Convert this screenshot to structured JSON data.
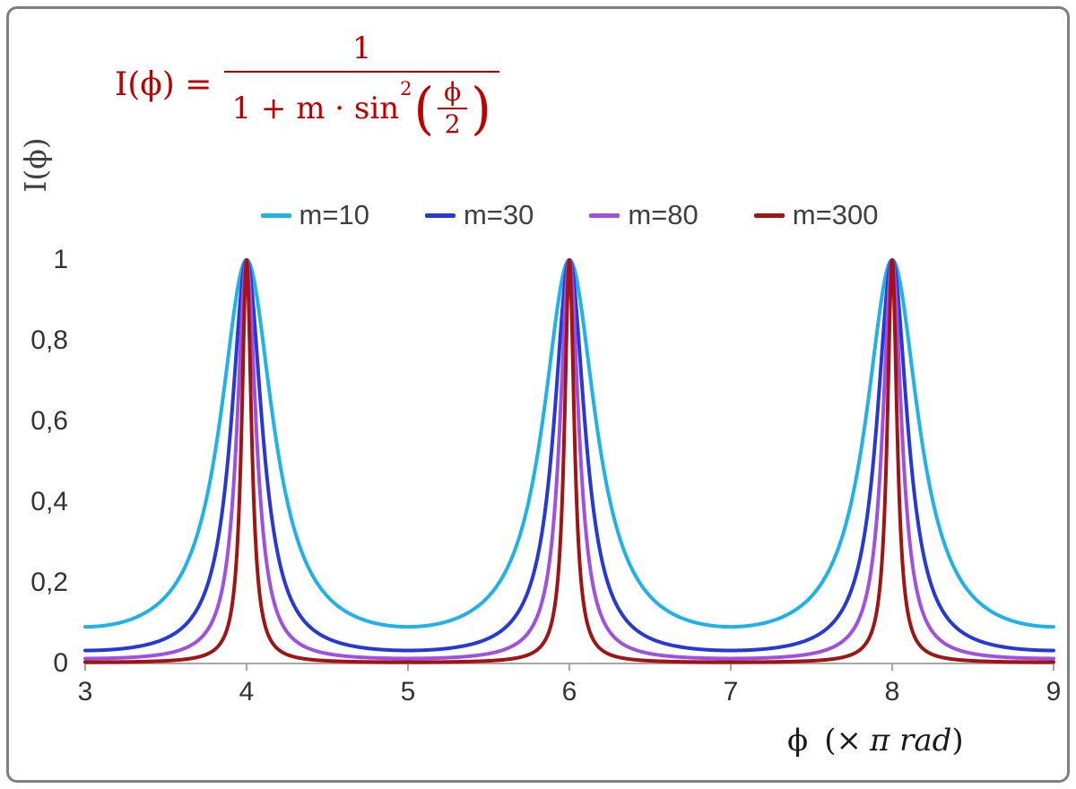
{
  "chart_data": {
    "type": "line",
    "title": "",
    "description": "Airy-type interference intensity function I(phi) = 1 / (1 + m*sin^2(phi/2)) plotted for several coefficients m; peaks of height 1 occur at phi = 4, 6, 8 (in units of pi rad).",
    "function": "I(phi) = 1 / (1 + m * sin^2(phi/2))",
    "ylabel": "I(ϕ)",
    "xlabel_parts": {
      "symbol": "ϕ",
      "pre": "(×",
      "italic": "π rad",
      "close": ")"
    },
    "x_unit": "π rad",
    "xlim": [
      3,
      9
    ],
    "ylim": [
      0,
      1
    ],
    "xticks": {
      "values": [
        3,
        4,
        5,
        6,
        7,
        8,
        9
      ],
      "labels": [
        "3",
        "4",
        "5",
        "6",
        "7",
        "8",
        "9"
      ]
    },
    "yticks": {
      "values": [
        1,
        0.8,
        0.6,
        0.4,
        0.2,
        0
      ],
      "labels": [
        "1",
        "0,8",
        "0,6",
        "0,4",
        "0,2",
        "0"
      ]
    },
    "peak_positions_x": [
      4,
      6,
      8
    ],
    "peak_value": 1,
    "grid": false,
    "legend_position": "top-center",
    "axis_color": "#A6A6A6",
    "series": [
      {
        "name": "m=10",
        "m": 10,
        "color": "#1EB2E8"
      },
      {
        "name": "m=30",
        "m": 30,
        "color": "#2638D7"
      },
      {
        "name": "m=80",
        "m": 80,
        "color": "#A14FE0"
      },
      {
        "name": "m=300",
        "m": 300,
        "color": "#A21414"
      }
    ]
  },
  "formula": {
    "lhs": "I(ϕ) =",
    "numerator": "1",
    "den_text": "1 + m · sin",
    "den_sup": "2",
    "paren_open": "(",
    "paren_close": ")",
    "inner_num": "ϕ",
    "inner_den": "2",
    "color": "#C00000"
  }
}
